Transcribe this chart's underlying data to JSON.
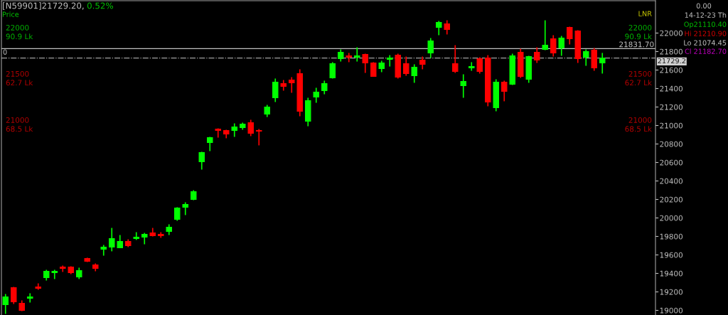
{
  "chart_data": {
    "type": "candlestick",
    "title": "[N59901]21729.20,",
    "subtitle": "0.52%",
    "categories": [
      null,
      null,
      null,
      null,
      null,
      null,
      null,
      null,
      null,
      null,
      null,
      null,
      null,
      null,
      null,
      null,
      null,
      null,
      null,
      null,
      null,
      null,
      null,
      null,
      null,
      null,
      null,
      null,
      null,
      null,
      null,
      null,
      null,
      null,
      null,
      null,
      null,
      null,
      null,
      null,
      null,
      null,
      null,
      null,
      null,
      null,
      null,
      null,
      null,
      null,
      null,
      null,
      null,
      null,
      null,
      null,
      null,
      null,
      null,
      null,
      null,
      null,
      null,
      null,
      null,
      null,
      null,
      null,
      null,
      null,
      null,
      null,
      null,
      null,
      null,
      null,
      null,
      null,
      null,
      null
    ],
    "ohlc": [
      [
        19062,
        19177,
        18962,
        19146
      ],
      [
        19246,
        19254,
        19069,
        19092
      ],
      [
        19077,
        19108,
        18992,
        19000
      ],
      [
        19131,
        19185,
        19085,
        19146
      ],
      [
        19254,
        19292,
        19223,
        19239
      ],
      [
        19354,
        19439,
        19323,
        19423
      ],
      [
        19408,
        19439,
        19339,
        19423
      ],
      [
        19469,
        19485,
        19416,
        19454
      ],
      [
        19469,
        19477,
        19392,
        19408
      ],
      [
        19362,
        19462,
        19339,
        19431
      ],
      [
        19562,
        19570,
        19523,
        19531
      ],
      [
        19492,
        19508,
        19423,
        19454
      ],
      [
        19662,
        19708,
        19592,
        19685
      ],
      [
        19685,
        19892,
        19639,
        19777
      ],
      [
        19677,
        19815,
        19677,
        19746
      ],
      [
        19746,
        19769,
        19685,
        19700
      ],
      [
        19777,
        19846,
        19762,
        19792
      ],
      [
        19792,
        19838,
        19715,
        19823
      ],
      [
        19838,
        19892,
        19800,
        19808
      ],
      [
        19823,
        19846,
        19785,
        19808
      ],
      [
        19854,
        19931,
        19815,
        19900
      ],
      [
        19985,
        20116,
        19969,
        20108
      ],
      [
        20116,
        20169,
        20031,
        20146
      ],
      [
        20200,
        20300,
        20192,
        20285
      ],
      [
        20608,
        20716,
        20523,
        20708
      ],
      [
        20815,
        20877,
        20723,
        20869
      ],
      [
        20962,
        20969,
        20869,
        20946
      ],
      [
        20946,
        20954,
        20862,
        20908
      ],
      [
        20946,
        21023,
        20877,
        20985
      ],
      [
        20977,
        21031,
        20954,
        21015
      ],
      [
        21031,
        21062,
        20885,
        20915
      ],
      [
        20946,
        20962,
        20785,
        20939
      ],
      [
        21123,
        21223,
        21092,
        21200
      ],
      [
        21300,
        21508,
        21254,
        21469
      ],
      [
        21454,
        21492,
        21377,
        21423
      ],
      [
        21492,
        21523,
        21354,
        21462
      ],
      [
        21562,
        21608,
        21100,
        21154
      ],
      [
        21046,
        21300,
        20992,
        21269
      ],
      [
        21308,
        21408,
        21246,
        21362
      ],
      [
        21377,
        21485,
        21338,
        21454
      ],
      [
        21515,
        21685,
        21508,
        21669
      ],
      [
        21723,
        21823,
        21692,
        21792
      ],
      [
        21754,
        21785,
        21685,
        21738
      ],
      [
        21738,
        21846,
        21692,
        21754
      ],
      [
        21769,
        21777,
        21569,
        21677
      ],
      [
        21677,
        21685,
        21531,
        21531
      ],
      [
        21615,
        21700,
        21577,
        21677
      ],
      [
        21715,
        21761,
        21638,
        21731
      ],
      [
        21761,
        21777,
        21508,
        21523
      ],
      [
        21669,
        21746,
        21538,
        21562
      ],
      [
        21538,
        21662,
        21462,
        21631
      ],
      [
        21708,
        21746,
        21608,
        21662
      ],
      [
        21785,
        21946,
        21731,
        21915
      ],
      [
        22062,
        22131,
        21977,
        22115
      ],
      [
        22100,
        22138,
        21985,
        22038
      ],
      [
        21669,
        21869,
        21569,
        21585
      ],
      [
        21431,
        21554,
        21300,
        21477
      ],
      [
        21623,
        21685,
        21592,
        21638
      ],
      [
        21723,
        21738,
        21562,
        21585
      ],
      [
        21731,
        21761,
        21208,
        21254
      ],
      [
        21192,
        21500,
        21154,
        21469
      ],
      [
        21469,
        21485,
        21262,
        21369
      ],
      [
        21446,
        21777,
        21438,
        21754
      ],
      [
        21792,
        21831,
        21515,
        21531
      ],
      [
        21500,
        21754,
        21462,
        21746
      ],
      [
        21792,
        21846,
        21677,
        21708
      ],
      [
        21823,
        22138,
        21815,
        21869
      ],
      [
        21938,
        21977,
        21746,
        21785
      ],
      [
        21838,
        21969,
        21754,
        21946
      ],
      [
        22062,
        22069,
        21877,
        21938
      ],
      [
        22023,
        22031,
        21677,
        21723
      ],
      [
        21738,
        21823,
        21646,
        21800
      ],
      [
        21815,
        21838,
        21592,
        21623
      ],
      [
        21677,
        21785,
        21562,
        21729
      ],
      null,
      null,
      null,
      null,
      null,
      null
    ],
    "ylim": [
      18950,
      22350
    ],
    "yticks": [
      19000,
      19200,
      19400,
      19600,
      19800,
      20000,
      20200,
      20400,
      20600,
      20800,
      21000,
      21200,
      21400,
      21600,
      21800,
      22000
    ],
    "ref_lines": [
      {
        "axis": "y",
        "value": 21831.7,
        "label": "21831.70",
        "color": "#c0c0c0",
        "line_style": "solid"
      },
      {
        "axis": "y",
        "value": 21729.2,
        "label": "21729.2",
        "color": "#a0a0a0",
        "line_style": "dashdot"
      }
    ],
    "annotations": [
      "Price",
      "LNR",
      "0",
      "0.00",
      "14-12-23 Th",
      "Op21110.40",
      "Hi 21210.90",
      "Lo 21074.45",
      "Cl 21182.70",
      "22000\n90.9 Lk",
      "21500\n62.7 Lk",
      "21000\n68.5 Lk"
    ],
    "grid": false
  }
}
